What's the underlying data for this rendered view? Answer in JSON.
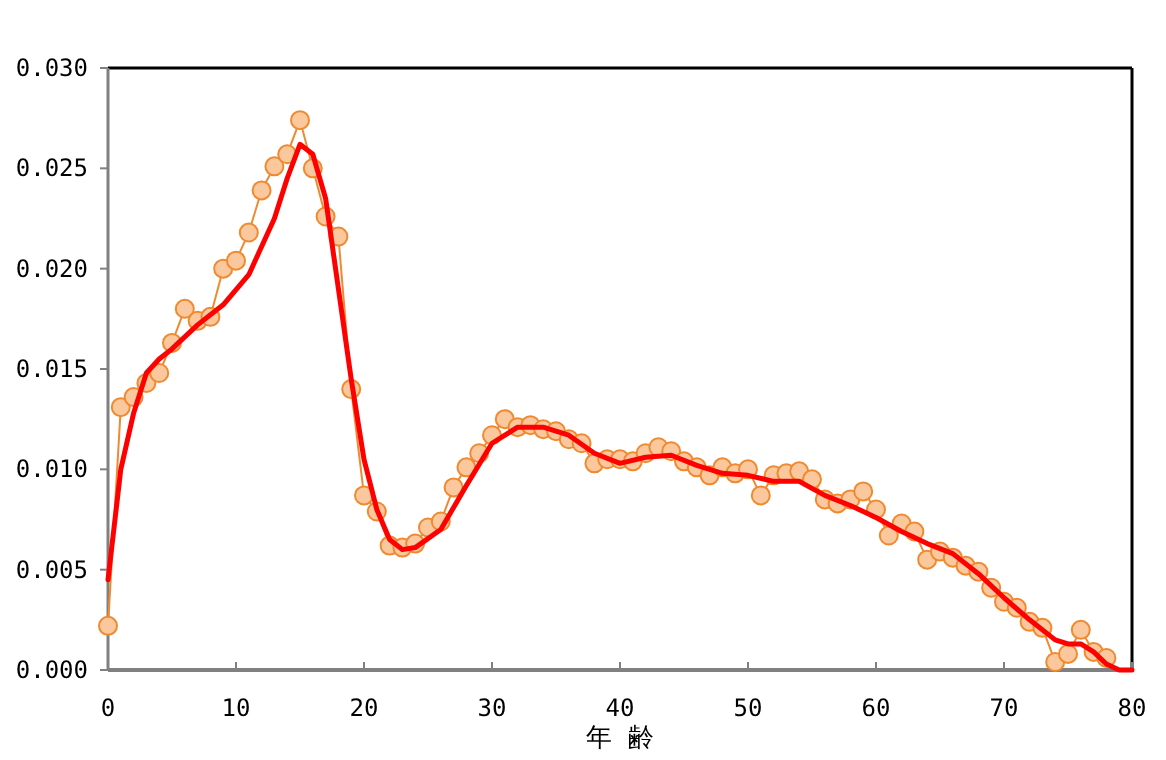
{
  "chart_data": {
    "type": "line",
    "xlabel": "年 齢",
    "xlim": [
      0,
      80
    ],
    "xticks": [
      0,
      10,
      20,
      30,
      40,
      50,
      60,
      70,
      80
    ],
    "ylim": [
      0,
      0.03
    ],
    "yticks": [
      {
        "value": 0,
        "label": "0.000"
      },
      {
        "value": 0.005,
        "label": "0.005"
      },
      {
        "value": 0.01,
        "label": "0.010"
      },
      {
        "value": 0.015,
        "label": "0.015"
      },
      {
        "value": 0.02,
        "label": "0.020"
      },
      {
        "value": 0.025,
        "label": "0.025"
      },
      {
        "value": 0.03,
        "label": "0.030"
      }
    ],
    "grid": false,
    "series": [
      {
        "color": "#f08a30",
        "marker": "circle",
        "x": [
          0,
          1,
          2,
          3,
          4,
          5,
          6,
          7,
          8,
          9,
          10,
          11,
          12,
          13,
          14,
          15,
          16,
          17,
          18,
          19,
          20,
          21,
          22,
          23,
          24,
          25,
          26,
          27,
          28,
          29,
          30,
          31,
          32,
          33,
          34,
          35,
          36,
          37,
          38,
          39,
          40,
          41,
          42,
          43,
          44,
          45,
          46,
          47,
          48,
          49,
          50,
          51,
          52,
          53,
          54,
          55,
          56,
          57,
          58,
          59,
          60,
          61,
          62,
          63,
          64,
          65,
          66,
          67,
          68,
          69,
          70,
          71,
          72,
          73,
          74,
          75,
          76,
          77,
          78
        ],
        "values": [
          0.0022,
          0.0131,
          0.0136,
          0.0143,
          0.0148,
          0.0163,
          0.018,
          0.0174,
          0.0176,
          0.02,
          0.0204,
          0.0218,
          0.0239,
          0.0251,
          0.0257,
          0.0274,
          0.025,
          0.0226,
          0.0216,
          0.014,
          0.0087,
          0.0079,
          0.0062,
          0.0061,
          0.0063,
          0.0071,
          0.0074,
          0.0091,
          0.0101,
          0.0108,
          0.0117,
          0.0125,
          0.0121,
          0.0122,
          0.012,
          0.0119,
          0.0115,
          0.0113,
          0.0103,
          0.0105,
          0.0105,
          0.0104,
          0.0108,
          0.0111,
          0.0109,
          0.0104,
          0.0101,
          0.0097,
          0.0101,
          0.0098,
          0.01,
          0.0087,
          0.0097,
          0.0098,
          0.0099,
          0.0095,
          0.0085,
          0.0083,
          0.0085,
          0.0089,
          0.008,
          0.0067,
          0.0073,
          0.0069,
          0.0055,
          0.0059,
          0.0056,
          0.0052,
          0.0049,
          0.0041,
          0.0034,
          0.0031,
          0.0024,
          0.0021,
          0.0004,
          0.0008,
          0.002,
          0.0009,
          0.0006
        ]
      },
      {
        "color": "#ff0000",
        "marker": "none",
        "x": [
          0,
          1,
          2,
          3,
          4,
          5,
          7,
          9,
          11,
          13,
          14,
          15,
          16,
          17,
          18,
          19,
          20,
          21,
          22,
          23,
          24,
          26,
          28,
          30,
          32,
          34,
          36,
          38,
          40,
          42,
          44,
          46,
          48,
          50,
          52,
          54,
          56,
          58,
          60,
          62,
          64,
          66,
          68,
          70,
          72,
          74,
          75,
          76,
          77,
          78,
          79,
          80
        ],
        "values": [
          0.0045,
          0.01,
          0.0128,
          0.0148,
          0.0155,
          0.016,
          0.0172,
          0.0182,
          0.0197,
          0.0225,
          0.0245,
          0.0262,
          0.0257,
          0.0235,
          0.019,
          0.0145,
          0.0105,
          0.008,
          0.0065,
          0.006,
          0.0061,
          0.007,
          0.0092,
          0.0113,
          0.0121,
          0.0121,
          0.0117,
          0.0108,
          0.0103,
          0.0106,
          0.0107,
          0.0102,
          0.0098,
          0.0097,
          0.0094,
          0.0094,
          0.0087,
          0.0082,
          0.0076,
          0.0069,
          0.0063,
          0.0058,
          0.0048,
          0.0036,
          0.0025,
          0.0015,
          0.0013,
          0.0013,
          0.0009,
          0.0003,
          0,
          0
        ]
      }
    ]
  }
}
